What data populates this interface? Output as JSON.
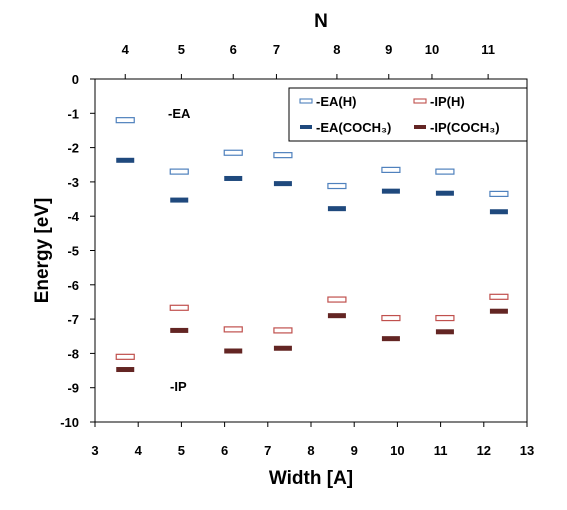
{
  "chart_data": {
    "type": "scatter",
    "xlabel": "Width [A]",
    "ylabel": "Energy [eV]",
    "top_axis_label": "N",
    "xlim": [
      3,
      13
    ],
    "ylim": [
      -10,
      0
    ],
    "x_ticks": [
      3,
      4,
      5,
      6,
      7,
      8,
      9,
      10,
      11,
      12,
      13
    ],
    "y_ticks": [
      0,
      -1,
      -2,
      -3,
      -4,
      -5,
      -6,
      -7,
      -8,
      -9,
      -10
    ],
    "top_ticks": [
      {
        "label": "4",
        "x": 3.7
      },
      {
        "label": "5",
        "x": 5.0
      },
      {
        "label": "6",
        "x": 6.2
      },
      {
        "label": "7",
        "x": 7.2
      },
      {
        "label": "8",
        "x": 8.6
      },
      {
        "label": "9",
        "x": 9.8
      },
      {
        "label": "10",
        "x": 10.8
      },
      {
        "label": "11",
        "x": 12.1
      }
    ],
    "annotations": [
      "-EA",
      "-IP"
    ],
    "legend_position": "top-right",
    "series": [
      {
        "name": "-EA(H)",
        "color": "#4f81bd",
        "style": "hollow",
        "x": [
          3.7,
          4.95,
          6.2,
          7.35,
          8.6,
          9.85,
          11.1,
          12.35
        ],
        "y": [
          -1.2,
          -2.7,
          -2.15,
          -2.22,
          -3.12,
          -2.65,
          -2.7,
          -3.35
        ]
      },
      {
        "name": "-IP(H)",
        "color": "#c0504d",
        "style": "hollow",
        "x": [
          3.7,
          4.95,
          6.2,
          7.35,
          8.6,
          9.85,
          11.1,
          12.35
        ],
        "y": [
          -8.1,
          -6.67,
          -7.3,
          -7.33,
          -6.43,
          -6.97,
          -6.97,
          -6.35
        ]
      },
      {
        "name": "-EA(COCH₃)",
        "color": "#1f497d",
        "style": "filled",
        "x": [
          3.7,
          4.95,
          6.2,
          7.35,
          8.6,
          9.85,
          11.1,
          12.35
        ],
        "y": [
          -2.37,
          -3.53,
          -2.9,
          -3.05,
          -3.78,
          -3.27,
          -3.33,
          -3.87
        ]
      },
      {
        "name": "-IP(COCH₃)",
        "color": "#632523",
        "style": "filled",
        "x": [
          3.7,
          4.95,
          6.2,
          7.35,
          8.6,
          9.85,
          11.1,
          12.35
        ],
        "y": [
          -8.47,
          -7.33,
          -7.93,
          -7.85,
          -6.9,
          -7.57,
          -7.37,
          -6.77
        ]
      }
    ]
  }
}
